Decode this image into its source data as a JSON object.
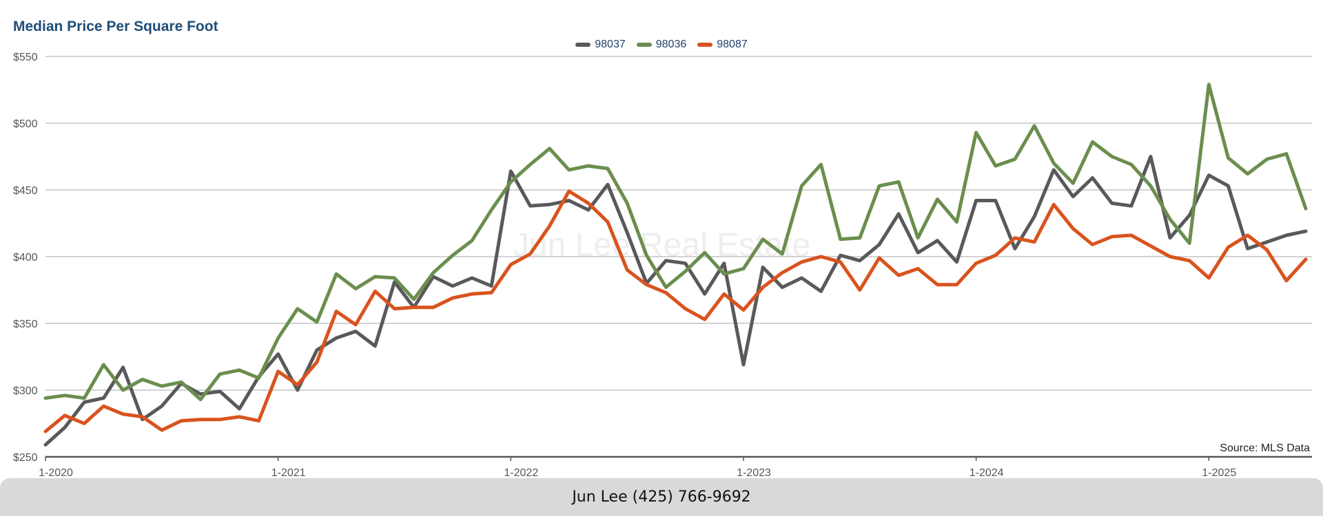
{
  "chart_data": {
    "type": "line",
    "title": "Median Price Per Square Foot",
    "xlabel": "",
    "ylabel": "",
    "ylim": [
      250,
      550
    ],
    "yticks": [
      250,
      300,
      350,
      400,
      450,
      500,
      550
    ],
    "ytick_labels": [
      "$250",
      "$300",
      "$350",
      "$400",
      "$450",
      "$500",
      "$550"
    ],
    "xlim": [
      "2020-01",
      "2025-06"
    ],
    "xticks": [
      "2020-01",
      "2021-01",
      "2022-01",
      "2023-01",
      "2024-01",
      "2025-01"
    ],
    "xtick_labels": [
      "1-2020",
      "1-2021",
      "1-2022",
      "1-2023",
      "1-2024",
      "1-2025"
    ],
    "grid": true,
    "legend_position": "top-center",
    "x": [
      "2020-01",
      "2020-02",
      "2020-03",
      "2020-04",
      "2020-05",
      "2020-06",
      "2020-07",
      "2020-08",
      "2020-09",
      "2020-10",
      "2020-11",
      "2020-12",
      "2021-01",
      "2021-02",
      "2021-03",
      "2021-04",
      "2021-05",
      "2021-06",
      "2021-07",
      "2021-08",
      "2021-09",
      "2021-10",
      "2021-11",
      "2021-12",
      "2022-01",
      "2022-02",
      "2022-03",
      "2022-04",
      "2022-05",
      "2022-06",
      "2022-07",
      "2022-08",
      "2022-09",
      "2022-10",
      "2022-11",
      "2022-12",
      "2023-01",
      "2023-02",
      "2023-03",
      "2023-04",
      "2023-05",
      "2023-06",
      "2023-07",
      "2023-08",
      "2023-09",
      "2023-10",
      "2023-11",
      "2023-12",
      "2024-01",
      "2024-02",
      "2024-03",
      "2024-04",
      "2024-05",
      "2024-06",
      "2024-07",
      "2024-08",
      "2024-09",
      "2024-10",
      "2024-11",
      "2024-12",
      "2025-01",
      "2025-02",
      "2025-03",
      "2025-04",
      "2025-05",
      "2025-06"
    ],
    "series": [
      {
        "name": "98037",
        "color": "#59595b",
        "values": [
          259,
          272,
          291,
          294,
          317,
          278,
          288,
          305,
          297,
          299,
          286,
          310,
          327,
          300,
          330,
          339,
          344,
          333,
          381,
          362,
          385,
          378,
          384,
          378,
          464,
          438,
          439,
          442,
          435,
          454,
          418,
          380,
          397,
          395,
          372,
          395,
          319,
          392,
          377,
          384,
          374,
          401,
          397,
          409,
          432,
          403,
          412,
          396,
          442,
          442,
          406,
          430,
          465,
          445,
          459,
          440,
          438,
          475,
          414,
          431,
          461,
          453,
          406,
          411,
          416,
          419
        ]
      },
      {
        "name": "98036",
        "color": "#6b8e4e",
        "values": [
          294,
          296,
          294,
          319,
          300,
          308,
          303,
          306,
          293,
          312,
          315,
          309,
          339,
          361,
          351,
          387,
          376,
          385,
          384,
          368,
          388,
          401,
          412,
          435,
          456,
          469,
          481,
          465,
          468,
          466,
          440,
          401,
          377,
          389,
          403,
          387,
          391,
          413,
          402,
          453,
          469,
          413,
          414,
          453,
          456,
          414,
          443,
          426,
          493,
          468,
          473,
          498,
          470,
          455,
          486,
          475,
          469,
          453,
          428,
          410,
          529,
          474,
          462,
          473,
          477,
          436
        ]
      },
      {
        "name": "98087",
        "color": "#d9531e",
        "values": [
          269,
          281,
          275,
          288,
          282,
          280,
          270,
          277,
          278,
          278,
          280,
          277,
          314,
          304,
          321,
          359,
          349,
          374,
          361,
          362,
          362,
          369,
          372,
          373,
          394,
          402,
          423,
          449,
          440,
          426,
          390,
          379,
          373,
          361,
          353,
          372,
          360,
          377,
          388,
          396,
          400,
          396,
          375,
          399,
          386,
          391,
          379,
          379,
          395,
          401,
          414,
          411,
          439,
          421,
          409,
          415,
          416,
          408,
          400,
          397,
          384,
          407,
          416,
          405,
          382,
          398
        ]
      }
    ]
  },
  "watermark": "Jun Lee Real Estate",
  "source_label": "Source: MLS Data",
  "footer_text": "Jun Lee (425) 766-9692"
}
